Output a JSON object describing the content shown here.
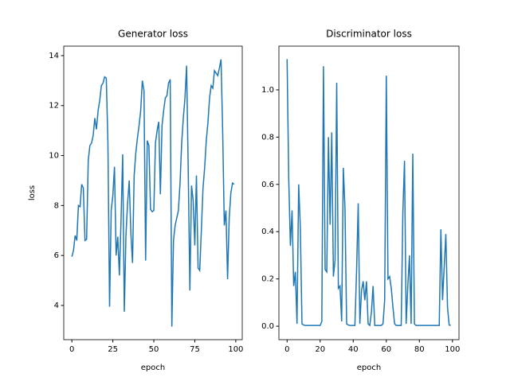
{
  "chart_data": [
    {
      "type": "line",
      "title": "Generator loss",
      "xlabel": "epoch",
      "ylabel": "loss",
      "color": "#1f77b4",
      "x": [
        0,
        1,
        2,
        3,
        4,
        5,
        6,
        7,
        8,
        9,
        10,
        11,
        12,
        13,
        14,
        15,
        16,
        17,
        18,
        19,
        20,
        21,
        22,
        23,
        24,
        25,
        26,
        27,
        28,
        29,
        30,
        31,
        32,
        33,
        34,
        35,
        36,
        37,
        38,
        39,
        40,
        41,
        42,
        43,
        44,
        45,
        46,
        47,
        48,
        49,
        50,
        51,
        52,
        53,
        54,
        55,
        56,
        57,
        58,
        59,
        60,
        61,
        62,
        63,
        64,
        65,
        66,
        67,
        68,
        69,
        70,
        71,
        72,
        73,
        74,
        75,
        76,
        77,
        78,
        79,
        80,
        81,
        82,
        83,
        84,
        85,
        86,
        87,
        88,
        89,
        90,
        91,
        92,
        93,
        94,
        95,
        96,
        97,
        98,
        99
      ],
      "values": [
        5.95,
        6.2,
        6.8,
        6.6,
        8.0,
        7.95,
        8.85,
        8.7,
        6.6,
        6.65,
        9.8,
        10.4,
        10.5,
        10.8,
        11.5,
        11.05,
        11.8,
        12.2,
        12.8,
        12.9,
        13.15,
        13.1,
        10.5,
        3.95,
        7.8,
        8.4,
        9.55,
        6.0,
        6.75,
        5.2,
        7.4,
        10.05,
        3.75,
        6.8,
        8.1,
        9.0,
        6.9,
        5.7,
        9.2,
        10.1,
        10.7,
        11.2,
        11.8,
        13.0,
        12.6,
        5.8,
        10.6,
        10.4,
        7.85,
        7.75,
        7.8,
        10.5,
        11.0,
        11.35,
        8.45,
        11.2,
        11.8,
        12.3,
        12.4,
        12.9,
        13.05,
        3.15,
        6.6,
        7.2,
        7.5,
        7.8,
        8.9,
        10.5,
        11.5,
        12.3,
        13.6,
        9.4,
        4.6,
        8.8,
        8.2,
        6.4,
        9.2,
        5.5,
        5.4,
        7.0,
        8.7,
        9.5,
        10.6,
        11.3,
        12.3,
        12.8,
        12.7,
        13.4,
        13.3,
        13.2,
        13.5,
        13.85,
        11.0,
        7.2,
        7.8,
        5.05,
        7.5,
        8.5,
        8.9,
        8.85
      ],
      "xlim": [
        -4.95,
        103.95
      ],
      "ylim": [
        2.63,
        14.38
      ],
      "xticks": [
        0,
        25,
        50,
        75,
        100
      ],
      "yticks": [
        4,
        6,
        8,
        10,
        12,
        14
      ]
    },
    {
      "type": "line",
      "title": "Discriminator loss",
      "xlabel": "epoch",
      "color": "#1f77b4",
      "x": [
        0,
        1,
        2,
        3,
        4,
        5,
        6,
        7,
        8,
        9,
        10,
        11,
        12,
        13,
        14,
        15,
        16,
        17,
        18,
        19,
        20,
        21,
        22,
        23,
        24,
        25,
        26,
        27,
        28,
        29,
        30,
        31,
        32,
        33,
        34,
        35,
        36,
        37,
        38,
        39,
        40,
        41,
        42,
        43,
        44,
        45,
        46,
        47,
        48,
        49,
        50,
        51,
        52,
        53,
        54,
        55,
        56,
        57,
        58,
        59,
        60,
        61,
        62,
        63,
        64,
        65,
        66,
        67,
        68,
        69,
        70,
        71,
        72,
        73,
        74,
        75,
        76,
        77,
        78,
        79,
        80,
        81,
        82,
        83,
        84,
        85,
        86,
        87,
        88,
        89,
        90,
        91,
        92,
        93,
        94,
        95,
        96,
        97,
        98,
        99
      ],
      "values": [
        1.13,
        0.62,
        0.34,
        0.49,
        0.17,
        0.23,
        0.01,
        0.6,
        0.42,
        0.01,
        0.005,
        0.003,
        0.003,
        0.003,
        0.003,
        0.003,
        0.003,
        0.003,
        0.003,
        0.003,
        0.003,
        0.02,
        1.1,
        0.24,
        0.23,
        0.8,
        0.43,
        0.82,
        0.21,
        0.28,
        1.03,
        0.16,
        0.17,
        0.02,
        0.67,
        0.5,
        0.01,
        0.005,
        0.003,
        0.003,
        0.003,
        0.003,
        0.23,
        0.52,
        0.01,
        0.15,
        0.19,
        0.11,
        0.19,
        0.01,
        0.003,
        0.06,
        0.17,
        0.003,
        0.003,
        0.003,
        0.003,
        0.003,
        0.01,
        0.11,
        1.06,
        0.2,
        0.21,
        0.16,
        0.08,
        0.01,
        0.003,
        0.003,
        0.003,
        0.003,
        0.48,
        0.7,
        0.01,
        0.17,
        0.3,
        0.01,
        0.73,
        0.01,
        0.003,
        0.003,
        0.003,
        0.003,
        0.003,
        0.003,
        0.003,
        0.003,
        0.003,
        0.003,
        0.003,
        0.003,
        0.003,
        0.003,
        0.003,
        0.41,
        0.11,
        0.25,
        0.39,
        0.08,
        0.005,
        0.003
      ],
      "xlim": [
        -4.95,
        103.95
      ],
      "ylim": [
        -0.057,
        1.185
      ],
      "xticks": [
        0,
        20,
        40,
        60,
        80,
        100
      ],
      "yticks": [
        {
          "value": 0,
          "label": "0.0"
        },
        {
          "value": 0.2,
          "label": "0.2"
        },
        {
          "value": 0.4,
          "label": "0.4"
        },
        {
          "value": 0.6,
          "label": "0.6"
        },
        {
          "value": 0.8,
          "label": "0.8"
        },
        {
          "value": 1.0,
          "label": "1.0"
        }
      ]
    }
  ]
}
